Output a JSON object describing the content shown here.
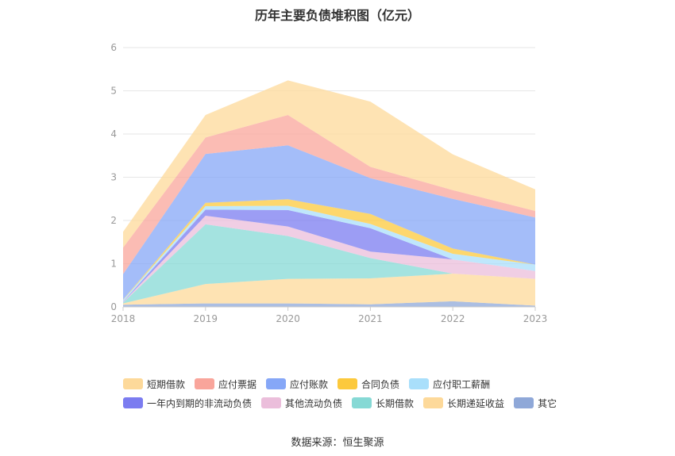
{
  "chart_data": {
    "type": "area",
    "stacked": true,
    "title": "历年主要负债堆积图（亿元）",
    "x": [
      "2018",
      "2019",
      "2020",
      "2021",
      "2022",
      "2023"
    ],
    "ylim": [
      0,
      6
    ],
    "yticks": [
      "0",
      "1",
      "2",
      "3",
      "4",
      "5",
      "6"
    ],
    "grid": true,
    "legend_position": "bottom",
    "series": [
      {
        "name": "其它",
        "color": "#8fa8d8",
        "values": [
          0.05,
          0.08,
          0.08,
          0.06,
          0.13,
          0.03
        ]
      },
      {
        "name": "长期递延收益",
        "color": "#fdd99a",
        "values": [
          0.03,
          0.45,
          0.57,
          0.6,
          0.64,
          0.62
        ]
      },
      {
        "name": "长期借款",
        "color": "#86d9d5",
        "values": [
          0.02,
          1.38,
          0.99,
          0.47,
          0.0,
          0.0
        ]
      },
      {
        "name": "其他流动负债",
        "color": "#ebbedb",
        "values": [
          0.01,
          0.2,
          0.22,
          0.15,
          0.33,
          0.18
        ]
      },
      {
        "name": "一年内到期的非流动负债",
        "color": "#7b7cf0",
        "values": [
          0.01,
          0.14,
          0.38,
          0.54,
          0.0,
          0.0
        ]
      },
      {
        "name": "应付职工薪酬",
        "color": "#a9dffb",
        "values": [
          0.04,
          0.08,
          0.1,
          0.1,
          0.13,
          0.15
        ]
      },
      {
        "name": "合同负债",
        "color": "#fcc93c",
        "values": [
          0.01,
          0.08,
          0.15,
          0.23,
          0.12,
          0.0
        ]
      },
      {
        "name": "应付账款",
        "color": "#86a7f7",
        "values": [
          0.59,
          1.13,
          1.25,
          0.83,
          1.15,
          1.09
        ]
      },
      {
        "name": "应付票据",
        "color": "#f9a59b",
        "values": [
          0.61,
          0.38,
          0.7,
          0.26,
          0.2,
          0.15
        ]
      },
      {
        "name": "短期借款",
        "color": "#fdd99a",
        "values": [
          0.37,
          0.52,
          0.8,
          1.51,
          0.83,
          0.5
        ]
      }
    ]
  },
  "legend": {
    "row1": [
      "短期借款",
      "应付票据",
      "应付账款",
      "合同负债",
      "应付职工薪酬"
    ],
    "row2": [
      "一年内到期的非流动负债",
      "其他流动负债",
      "长期借款",
      "长期递延收益",
      "其它"
    ]
  },
  "source": "数据来源：恒生聚源"
}
